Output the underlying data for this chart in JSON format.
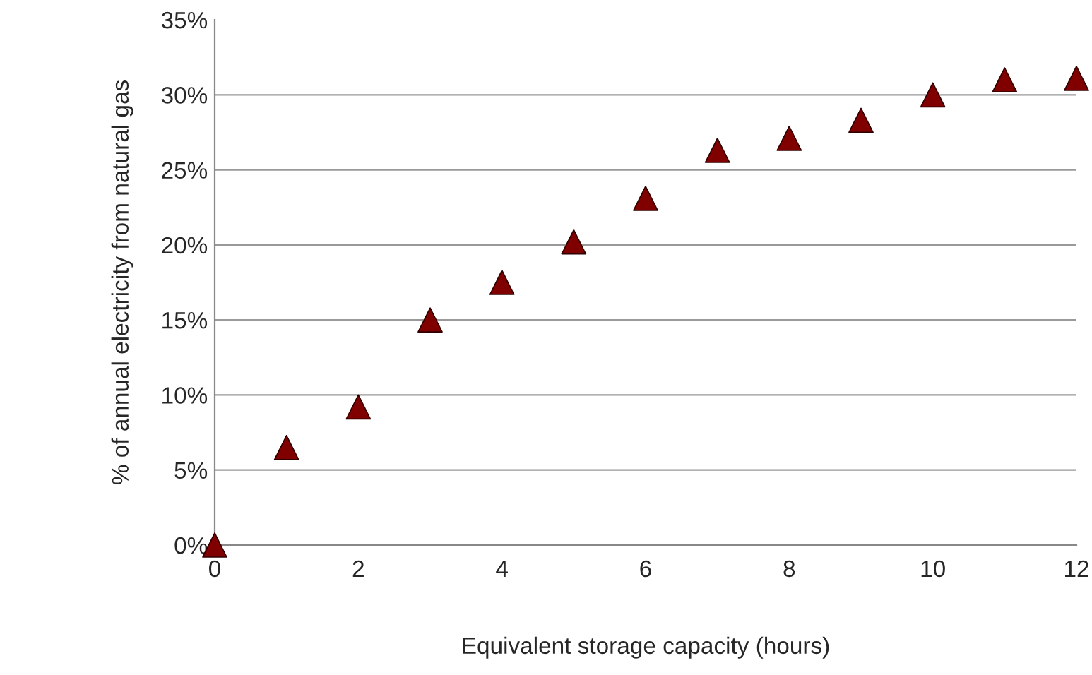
{
  "chart_data": {
    "type": "scatter",
    "xlabel": "Equivalent storage capacity (hours)",
    "ylabel": "% of annual electricity from natural gas",
    "x": [
      0,
      1,
      2,
      3,
      4,
      5,
      6,
      7,
      8,
      9,
      10,
      11,
      12
    ],
    "series": [
      {
        "color": "#800000",
        "values": [
          0,
          6.5,
          9.2,
          15,
          17.5,
          20.2,
          23.1,
          26.3,
          27.1,
          28.3,
          30,
          31,
          31.1
        ]
      }
    ],
    "xlim": [
      0,
      12
    ],
    "xticks": [
      0,
      2,
      4,
      6,
      8,
      10,
      12
    ],
    "ylim": [
      0,
      35
    ],
    "yticks": [
      {
        "value": 0,
        "label": "0%"
      },
      {
        "value": 5,
        "label": "5%"
      },
      {
        "value": 10,
        "label": "10%"
      },
      {
        "value": 15,
        "label": "15%"
      },
      {
        "value": 20,
        "label": "20%"
      },
      {
        "value": 25,
        "label": "25%"
      },
      {
        "value": 30,
        "label": "30%"
      },
      {
        "value": 35,
        "label": "35%"
      }
    ],
    "grid": "y",
    "marker": "triangle",
    "legend": false
  }
}
